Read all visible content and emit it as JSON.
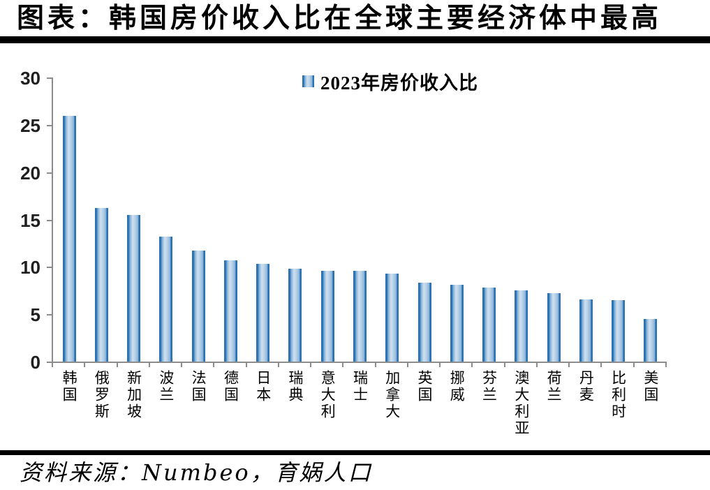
{
  "header": {
    "title": "图表：韩国房价收入比在全球主要经济体中最高"
  },
  "legend": {
    "label": "2023年房价收入比"
  },
  "source": {
    "text": "资料来源：Numbeo，育娲人口"
  },
  "chart_data": {
    "type": "bar",
    "title": "图表：韩国房价收入比在全球主要经济体中最高",
    "legend_entries": [
      "2023年房价收入比"
    ],
    "legend_position": "top-center",
    "categories": [
      "韩国",
      "俄罗斯",
      "新加坡",
      "波兰",
      "法国",
      "德国",
      "日本",
      "瑞典",
      "意大利",
      "瑞士",
      "加拿大",
      "英国",
      "挪威",
      "芬兰",
      "澳大利亚",
      "荷兰",
      "丹麦",
      "比利时",
      "美国"
    ],
    "values": [
      26.0,
      16.2,
      15.5,
      13.2,
      11.7,
      10.7,
      10.3,
      9.8,
      9.6,
      9.6,
      9.3,
      8.3,
      8.1,
      7.8,
      7.5,
      7.2,
      6.6,
      6.5,
      4.5
    ],
    "xlabel": "",
    "ylabel": "",
    "ylim": [
      0,
      30
    ],
    "yticks": [
      0,
      5,
      10,
      15,
      20,
      25,
      30
    ],
    "grid": false,
    "source": "资料来源：Numbeo，育娲人口",
    "colors": {
      "bar_dark": "#2b72b4",
      "bar_light": "#cfe0ef",
      "axis": "#8c8c8c",
      "text": "#000000"
    }
  }
}
